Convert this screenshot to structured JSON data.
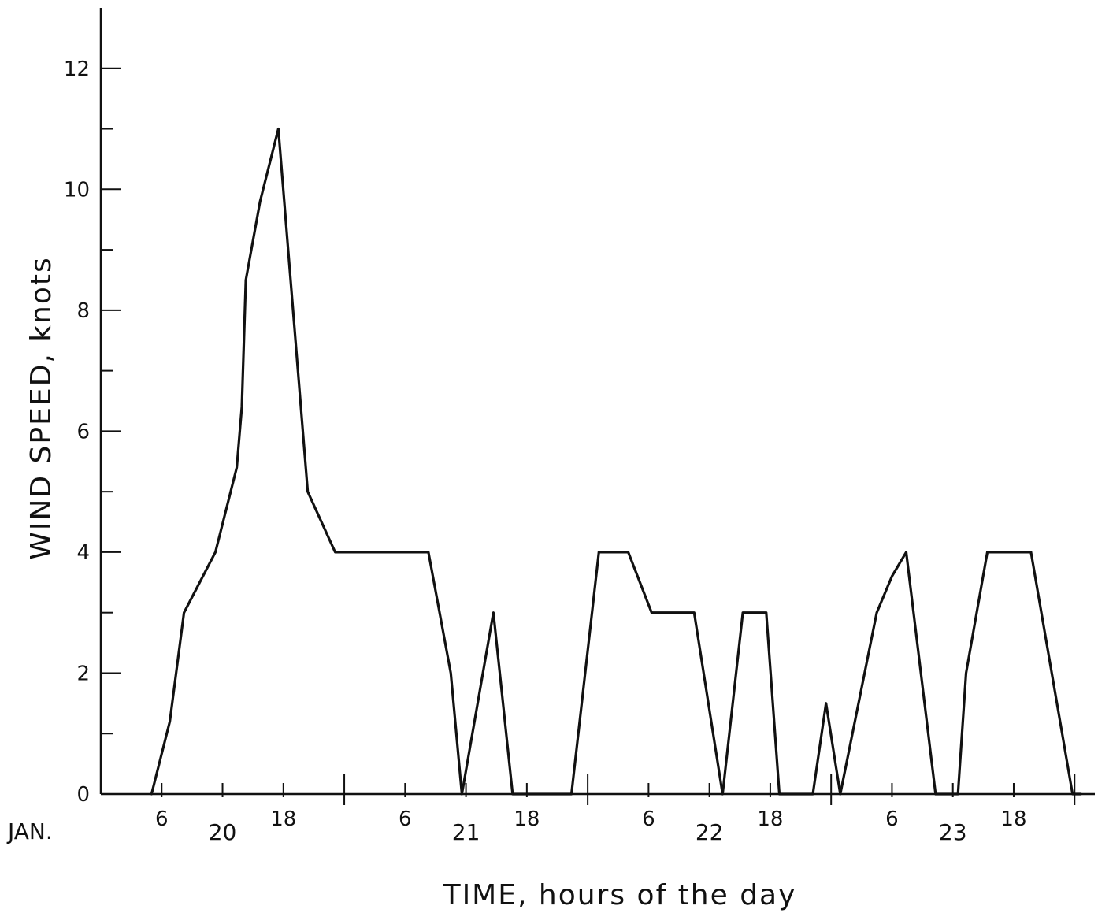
{
  "chart_data": {
    "type": "line",
    "xlabel": "TIME, hours of the day",
    "ylabel": "WIND SPEED, knots",
    "ylim": [
      0,
      13
    ],
    "xlim": [
      0,
      98
    ],
    "y_ticks_major": [
      0,
      2,
      4,
      6,
      8,
      10,
      12
    ],
    "y_tick_labels": [
      "0",
      "2",
      "4",
      "6",
      "8",
      "10",
      "12"
    ],
    "y_ticks_minor": [
      1,
      3,
      5,
      7,
      9,
      11
    ],
    "x_tick_positions": [
      6,
      12,
      18,
      24,
      30,
      36,
      42,
      48,
      54,
      60,
      66,
      72,
      78,
      84,
      90,
      96
    ],
    "x_tick_labels": [
      {
        "x": 6,
        "label": "6"
      },
      {
        "x": 18,
        "label": "18"
      },
      {
        "x": 30,
        "label": "6"
      },
      {
        "x": 42,
        "label": "18"
      },
      {
        "x": 54,
        "label": "6"
      },
      {
        "x": 66,
        "label": "18"
      },
      {
        "x": 78,
        "label": "6"
      },
      {
        "x": 90,
        "label": "18"
      }
    ],
    "day_row_label": "JAN.",
    "days": [
      {
        "x": 12,
        "label": "20"
      },
      {
        "x": 36,
        "label": "21"
      },
      {
        "x": 60,
        "label": "22"
      },
      {
        "x": 84,
        "label": "23"
      }
    ],
    "series": [
      {
        "x": [
          5,
          6.8,
          8.2,
          11.3,
          13.4,
          13.9,
          14.3,
          15.7,
          17.5,
          20.4,
          23.1,
          32.3,
          34.5,
          35.6,
          38.7,
          40.6,
          46.4,
          49.1,
          52.0,
          54.3,
          55.1,
          57.2,
          58.5,
          61.3,
          63.3,
          65.6,
          66.9,
          70.2,
          71.5,
          72.9,
          76.5,
          78.0,
          79.4,
          82.3,
          84.5,
          85.3,
          87.4,
          90.0,
          91.7,
          95.8,
          96.6
        ],
        "values": [
          0,
          1.2,
          3,
          4,
          5.4,
          6.4,
          8.5,
          9.8,
          11,
          5,
          4,
          4,
          2,
          0,
          3,
          0,
          0,
          4,
          4,
          3,
          3,
          3,
          3,
          0,
          3,
          3,
          0,
          0,
          1.5,
          0,
          3,
          3.6,
          4,
          0,
          0,
          2,
          4,
          4,
          4,
          0,
          0
        ]
      }
    ]
  }
}
